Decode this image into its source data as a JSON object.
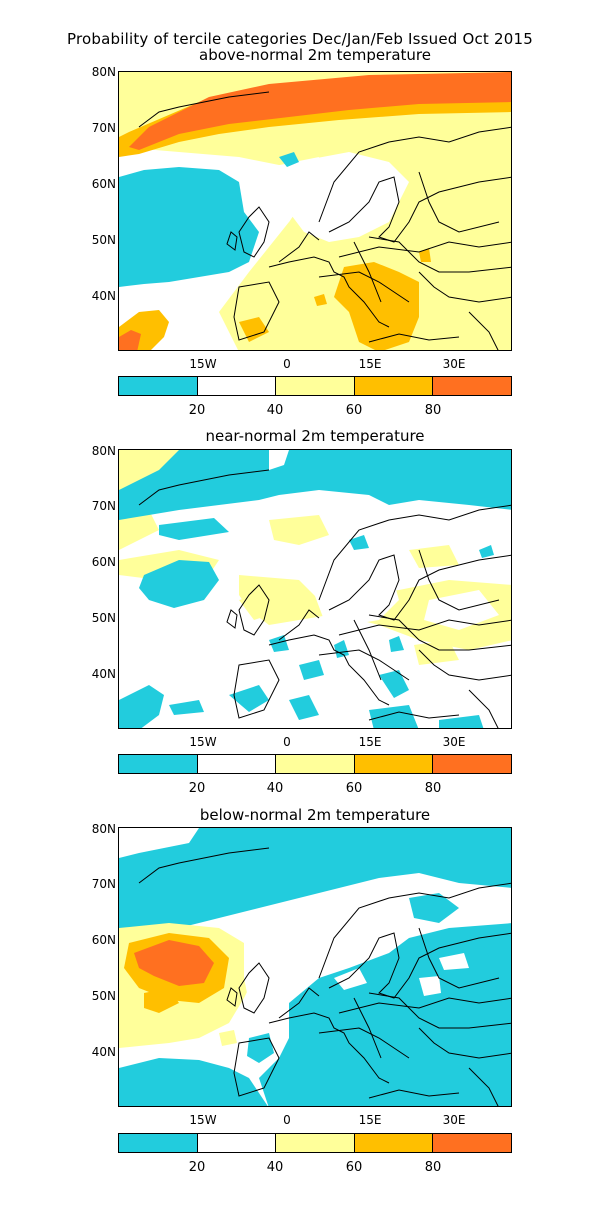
{
  "title": "Probability of tercile categories Dec/Jan/Feb Issued Oct 2015",
  "panels": [
    {
      "subtitle": "above-normal 2m temperature"
    },
    {
      "subtitle": "near-normal 2m temperature"
    },
    {
      "subtitle": "below-normal 2m temperature"
    }
  ],
  "lat_labels": [
    "80N",
    "70N",
    "60N",
    "50N",
    "40N"
  ],
  "lon_labels": [
    "15W",
    "0",
    "15E",
    "30E"
  ],
  "colorbar": {
    "colors": [
      "#22ccdd",
      "#ffffff",
      "#ffff9a",
      "#ffbf00",
      "#ff7020"
    ],
    "labels": [
      "20",
      "40",
      "60",
      "80"
    ]
  }
}
